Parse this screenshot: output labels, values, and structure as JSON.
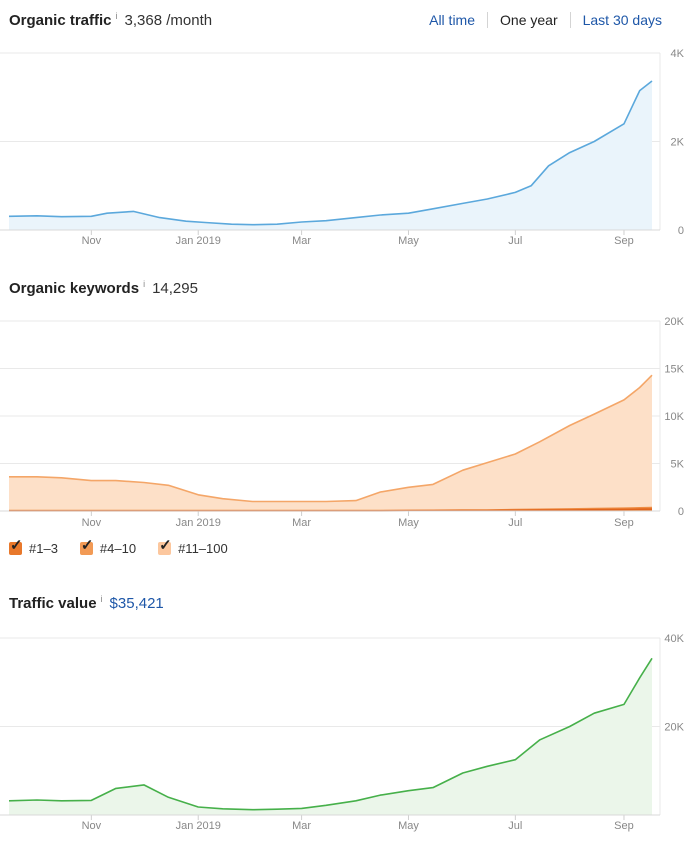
{
  "traffic": {
    "title": "Organic traffic",
    "info": "i",
    "value": "3,368 /month",
    "range_options": [
      {
        "label": "All time",
        "active": false
      },
      {
        "label": "One year",
        "active": true
      },
      {
        "label": "Last 30 days",
        "active": false
      }
    ]
  },
  "keywords": {
    "title": "Organic keywords",
    "info": "i",
    "value": "14,295",
    "legend": [
      {
        "label": "#1–3",
        "color": "#e8782b",
        "checked": true
      },
      {
        "label": "#4–10",
        "color": "#f29a55",
        "checked": true
      },
      {
        "label": "#11–100",
        "color": "#fcc79e",
        "checked": true
      }
    ]
  },
  "value": {
    "title": "Traffic value",
    "info": "i",
    "value": "$35,421"
  },
  "chart_data": [
    {
      "type": "area",
      "title": "Organic traffic",
      "color": "#5ba8dc",
      "fill": "#eaf4fb",
      "x_ticks": [
        "Nov",
        "Jan 2019",
        "Mar",
        "May",
        "Jul",
        "Sep"
      ],
      "y_ticks": [
        "4K",
        "2K",
        "0"
      ],
      "ylim": [
        0,
        4000
      ],
      "grid": true,
      "series": [
        {
          "x": [
            "2018-09-15",
            "2018-10-01",
            "2018-10-15",
            "2018-11-01",
            "2018-11-10",
            "2018-11-25",
            "2018-12-10",
            "2018-12-25",
            "2019-01-05",
            "2019-01-20",
            "2019-02-01",
            "2019-02-15",
            "2019-03-01",
            "2019-03-15",
            "2019-04-01",
            "2019-04-15",
            "2019-05-01",
            "2019-05-15",
            "2019-06-01",
            "2019-06-15",
            "2019-07-01",
            "2019-07-10",
            "2019-07-20",
            "2019-08-01",
            "2019-08-15",
            "2019-09-01",
            "2019-09-10",
            "2019-09-17"
          ],
          "values": [
            310,
            320,
            300,
            310,
            380,
            420,
            280,
            200,
            170,
            130,
            120,
            130,
            180,
            210,
            280,
            340,
            380,
            480,
            600,
            700,
            850,
            1000,
            1450,
            1750,
            2000,
            2400,
            3150,
            3368
          ]
        }
      ]
    },
    {
      "type": "area",
      "title": "Organic keywords",
      "x_ticks": [
        "Nov",
        "Jan 2019",
        "Mar",
        "May",
        "Jul",
        "Sep"
      ],
      "y_ticks": [
        "20K",
        "15K",
        "10K",
        "5K",
        "0"
      ],
      "ylim": [
        0,
        20000
      ],
      "grid": true,
      "x": [
        "2018-09-15",
        "2018-10-01",
        "2018-10-15",
        "2018-11-01",
        "2018-11-15",
        "2018-12-01",
        "2018-12-15",
        "2019-01-01",
        "2019-01-15",
        "2019-02-01",
        "2019-02-15",
        "2019-03-01",
        "2019-03-15",
        "2019-04-01",
        "2019-04-15",
        "2019-05-01",
        "2019-05-15",
        "2019-06-01",
        "2019-06-15",
        "2019-07-01",
        "2019-07-15",
        "2019-08-01",
        "2019-08-15",
        "2019-09-01",
        "2019-09-10",
        "2019-09-17"
      ],
      "series": [
        {
          "name": "#11–100",
          "color": "#f4a668",
          "fill": "#fde0c8",
          "values": [
            3600,
            3600,
            3500,
            3200,
            3200,
            3000,
            2700,
            1700,
            1300,
            1000,
            1000,
            1000,
            1000,
            1100,
            2000,
            2500,
            2800,
            4300,
            5100,
            6000,
            7300,
            9000,
            10200,
            11700,
            13000,
            14295
          ]
        },
        {
          "name": "#4–10",
          "color": "#ee8d44",
          "fill": "#f7b98a",
          "values": [
            40,
            40,
            40,
            40,
            40,
            40,
            40,
            40,
            40,
            40,
            40,
            40,
            40,
            40,
            50,
            60,
            70,
            90,
            110,
            150,
            180,
            220,
            260,
            300,
            340,
            360
          ]
        },
        {
          "name": "#1–3",
          "color": "#e0641c",
          "fill": "#e8782b",
          "values": [
            20,
            20,
            20,
            20,
            20,
            20,
            20,
            20,
            20,
            20,
            20,
            20,
            20,
            20,
            25,
            30,
            35,
            45,
            55,
            70,
            90,
            110,
            140,
            170,
            190,
            200
          ]
        }
      ]
    },
    {
      "type": "area",
      "title": "Traffic value",
      "color": "#46b04a",
      "fill": "#ebf6ea",
      "x_ticks": [
        "Nov",
        "Jan 2019",
        "Mar",
        "May",
        "Jul",
        "Sep"
      ],
      "y_ticks": [
        "40K",
        "20K"
      ],
      "ylim": [
        0,
        40000
      ],
      "grid": true,
      "series": [
        {
          "x": [
            "2018-09-15",
            "2018-10-01",
            "2018-10-15",
            "2018-11-01",
            "2018-11-15",
            "2018-12-01",
            "2018-12-15",
            "2019-01-01",
            "2019-01-15",
            "2019-02-01",
            "2019-02-15",
            "2019-03-01",
            "2019-03-15",
            "2019-04-01",
            "2019-04-15",
            "2019-05-01",
            "2019-05-15",
            "2019-06-01",
            "2019-06-15",
            "2019-07-01",
            "2019-07-15",
            "2019-08-01",
            "2019-08-15",
            "2019-09-01",
            "2019-09-10",
            "2019-09-17"
          ],
          "values": [
            3200,
            3400,
            3200,
            3300,
            6000,
            6800,
            4000,
            1800,
            1400,
            1200,
            1300,
            1500,
            2200,
            3200,
            4500,
            5500,
            6200,
            9500,
            11000,
            12500,
            17000,
            20000,
            23000,
            25000,
            31000,
            35421
          ]
        }
      ]
    }
  ]
}
